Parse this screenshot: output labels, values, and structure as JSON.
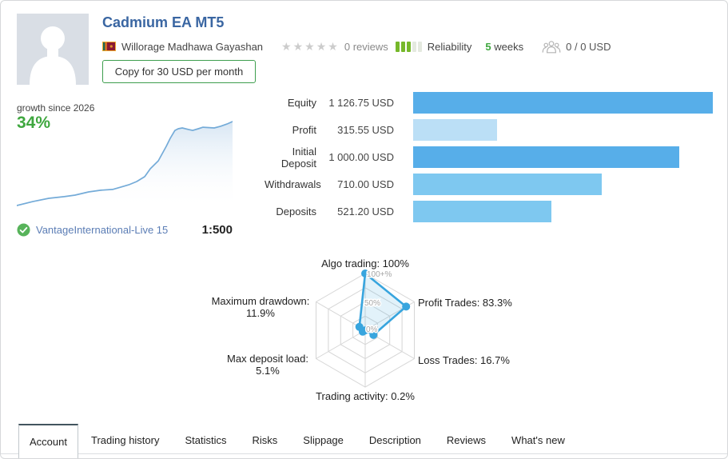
{
  "header": {
    "title": "Cadmium EA MT5",
    "author": "Willorage Madhawa Gayashan",
    "stars_total": 5,
    "reviews": "0 reviews",
    "reliability_label": "Reliability",
    "reliability_bars_total": 5,
    "reliability_bars_filled": 3,
    "weeks_value": "5",
    "weeks_label": "weeks",
    "subscribers": "0 / 0 USD",
    "copy_button_label": "Copy for 30 USD per month"
  },
  "growth": {
    "label": "growth since 2026",
    "value": "34%",
    "server": "VantageInternational-Live 15",
    "leverage": "1:500"
  },
  "icons": {
    "star": "★",
    "subscribers": "people-group-outline",
    "verified": "green-check-badge",
    "flag": "sri-lanka-flag",
    "reliability": "bar-meter"
  },
  "colors": {
    "title_blue": "#3a66a2",
    "green": "#3fa73f",
    "reliability_green": "#76b82a",
    "growth_line": "#74abd8",
    "radar_stroke": "#38a5de",
    "server_blue": "#5b7db5",
    "button_border_green": "#3e9e4e"
  },
  "chart_data": [
    {
      "id": "growth_curve",
      "type": "area",
      "title": "growth since 2026",
      "ylabel": "growth %",
      "ylim": [
        0,
        34
      ],
      "final_value_pct": 34,
      "points": [
        [
          0,
          0
        ],
        [
          7.4,
          1.6
        ],
        [
          14.8,
          2.9
        ],
        [
          22,
          3.6
        ],
        [
          27,
          4.2
        ],
        [
          33.3,
          5.5
        ],
        [
          38.9,
          6.2
        ],
        [
          44.4,
          6.5
        ],
        [
          48.1,
          7.4
        ],
        [
          51.9,
          8.4
        ],
        [
          55.6,
          9.7
        ],
        [
          59.3,
          11.7
        ],
        [
          61.9,
          14.9
        ],
        [
          65.6,
          18.1
        ],
        [
          69.3,
          24.0
        ],
        [
          71.1,
          27.2
        ],
        [
          73.3,
          30.4
        ],
        [
          74.8,
          31.1
        ],
        [
          76.7,
          31.4
        ],
        [
          79.6,
          30.8
        ],
        [
          81.5,
          30.4
        ],
        [
          84.1,
          31.1
        ],
        [
          86.3,
          31.7
        ],
        [
          91.5,
          31.4
        ],
        [
          94.4,
          32.1
        ],
        [
          97.4,
          33.0
        ],
        [
          100,
          34.0
        ]
      ]
    },
    {
      "id": "balance_bars",
      "type": "bar",
      "orientation": "horizontal",
      "categories": [
        "Equity",
        "Profit",
        "Initial Deposit",
        "Withdrawals",
        "Deposits"
      ],
      "values": [
        1126.75,
        315.55,
        1000.0,
        710.0,
        521.2
      ],
      "value_labels": [
        "1 126.75 USD",
        "315.55 USD",
        "1 000.00 USD",
        "710.00 USD",
        "521.20 USD"
      ],
      "bar_colors": [
        "#57aee9",
        "#bbdff6",
        "#57aee9",
        "#7ec8f0",
        "#7ec8f0"
      ],
      "xlim": [
        0,
        1126.75
      ],
      "grid": false
    },
    {
      "id": "trade_radar",
      "type": "radar",
      "max_value": 100,
      "rings": [
        25,
        50,
        75,
        100
      ],
      "ring_labels": [
        "100+%",
        "50%",
        "0%"
      ],
      "axes": [
        {
          "label": "Algo trading",
          "value": 100,
          "value_label": "100%",
          "position": "top"
        },
        {
          "label": "Profit Trades",
          "value": 83.3,
          "value_label": "83.3%",
          "position": "right-upper"
        },
        {
          "label": "Loss Trades",
          "value": 16.7,
          "value_label": "16.7%",
          "position": "right-lower"
        },
        {
          "label": "Trading activity",
          "value": 0.2,
          "value_label": "0.2%",
          "position": "bottom"
        },
        {
          "label": "Max deposit load",
          "value": 5.1,
          "value_label": "5.1%",
          "position": "left-lower"
        },
        {
          "label": "Maximum drawdown",
          "value": 11.9,
          "value_label": "11.9%",
          "position": "left-upper"
        }
      ]
    }
  ],
  "tabs": [
    "Account",
    "Trading history",
    "Statistics",
    "Risks",
    "Slippage",
    "Description",
    "Reviews",
    "What's new"
  ],
  "active_tab": "Account"
}
